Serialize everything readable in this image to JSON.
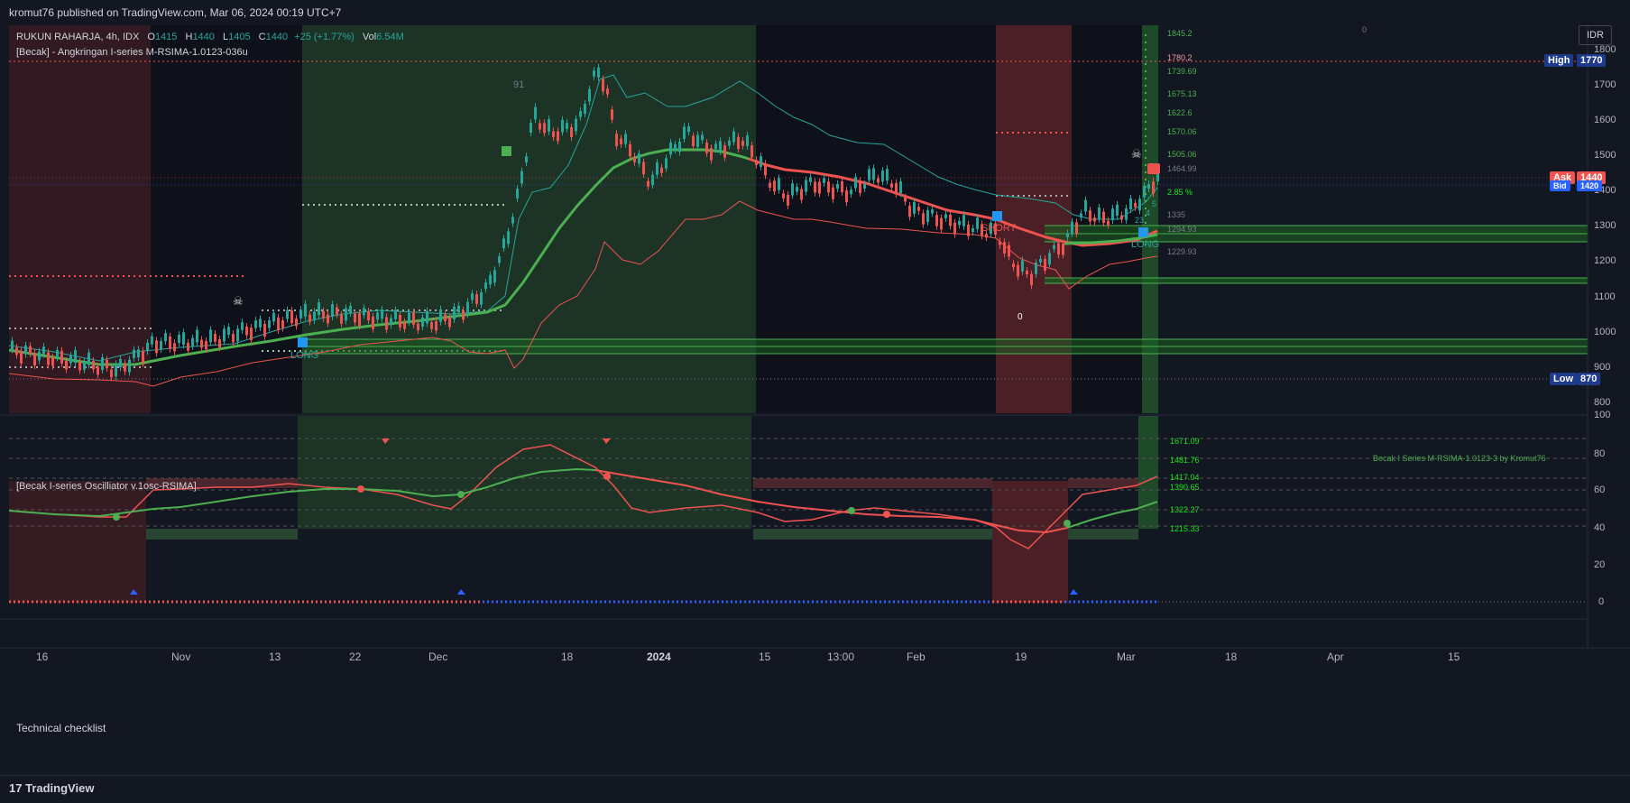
{
  "header": {
    "published": "kromut76 published on TradingView.com, Mar 06, 2024 00:19 UTC+7"
  },
  "symbol": {
    "name": "RUKUN RAHARJA, 4h, IDX",
    "o_label": "O",
    "o": "1415",
    "h_label": "H",
    "h": "1440",
    "l_label": "L",
    "l": "1405",
    "c_label": "C",
    "c": "1440",
    "change": "+25 (+1.77%)",
    "vol_label": "Vol",
    "vol": "6.54M"
  },
  "indicator_main": "[Becak] - Angkringan I-series M-RSIMA-1.0123-036u",
  "indicator_osc": "[Becak I-series Oscilliator v.1osc-RSIMA]",
  "checklist": "Technical checklist",
  "currency": "IDR",
  "watermark": "Becak I Series M-RSIMA-1.0123-3 by Kromut76",
  "price_axis": [
    "1800",
    "1700",
    "1600",
    "1500",
    "1400",
    "1300",
    "1200",
    "1100",
    "1000",
    "900",
    "800"
  ],
  "osc_axis": [
    "100",
    "80",
    "60",
    "40",
    "20",
    "0"
  ],
  "high": {
    "label": "High",
    "value": "1770"
  },
  "low": {
    "label": "Low",
    "value": "870"
  },
  "ask": {
    "label": "Ask",
    "value": "1440"
  },
  "bid": {
    "label": "Bid",
    "value": "1420"
  },
  "targets": [
    "1845.2",
    "1780.2",
    "1739.69",
    "1675.13",
    "1622.6",
    "1570.06",
    "1505.06",
    "1464.99",
    "2.85 %",
    "1335",
    "1294.93",
    "1229.93"
  ],
  "osc_levels": [
    "1671.09",
    "1481.76",
    "1417.04",
    "1390.65",
    "1322.27",
    "1215.33"
  ],
  "signals": {
    "long1": "LONG",
    "long2": "LONG",
    "short1": "SHORT",
    "count91": "91",
    "zero1": "0",
    "zero2": "0",
    "n5": "5",
    "n4": "4",
    "n23": "23"
  },
  "time_axis": [
    "16",
    "Nov",
    "13",
    "22",
    "Dec",
    "18",
    "2024",
    "15",
    "13:00",
    "Feb",
    "19",
    "Mar",
    "18",
    "Apr",
    "15"
  ],
  "footer": {
    "brand": "TradingView"
  },
  "colors": {
    "bg": "#131722",
    "green": "#26a69a",
    "red": "#ef5350",
    "lime": "#4caf50",
    "blue": "#2962ff"
  }
}
